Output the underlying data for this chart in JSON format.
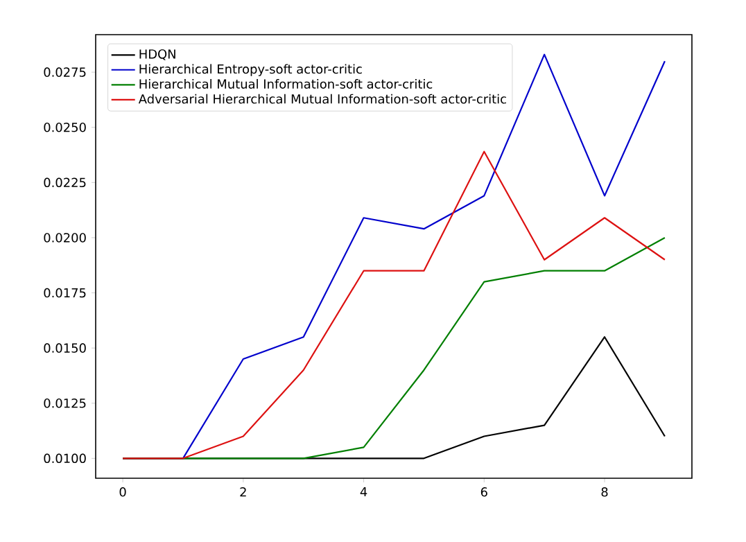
{
  "chart_data": {
    "type": "line",
    "x": [
      0,
      1,
      2,
      3,
      4,
      5,
      6,
      7,
      8,
      9
    ],
    "series": [
      {
        "name": "HDQN",
        "color": "#000000",
        "values": [
          0.01,
          0.01,
          0.01,
          0.01,
          0.01,
          0.01,
          0.011,
          0.0115,
          0.0155,
          0.011
        ]
      },
      {
        "name": "Hierarchical Entropy-soft actor-critic",
        "color": "#0000cc",
        "values": [
          0.01,
          0.01,
          0.0145,
          0.0155,
          0.0209,
          0.0204,
          0.0219,
          0.0283,
          0.0219,
          0.028
        ]
      },
      {
        "name": "Hierarchical Mutual Information-soft actor-critic",
        "color": "#007f00",
        "values": [
          0.01,
          0.01,
          0.01,
          0.01,
          0.0105,
          0.014,
          0.018,
          0.0185,
          0.0185,
          0.02
        ]
      },
      {
        "name": "Adversarial Hierarchical Mutual Information-soft actor-critic",
        "color": "#dd1111",
        "values": [
          0.01,
          0.01,
          0.011,
          0.014,
          0.0185,
          0.0185,
          0.0239,
          0.019,
          0.0209,
          0.019
        ]
      }
    ],
    "xlim": [
      -0.45,
      9.45
    ],
    "ylim": [
      0.0091,
      0.0292
    ],
    "xticks": [
      0,
      2,
      4,
      6,
      8
    ],
    "yticks": [
      {
        "value": 0.01,
        "label": "0.0100"
      },
      {
        "value": 0.0125,
        "label": "0.0125"
      },
      {
        "value": 0.015,
        "label": "0.0150"
      },
      {
        "value": 0.0175,
        "label": "0.0175"
      },
      {
        "value": 0.02,
        "label": "0.0200"
      },
      {
        "value": 0.0225,
        "label": "0.0225"
      },
      {
        "value": 0.025,
        "label": "0.0250"
      },
      {
        "value": 0.0275,
        "label": "0.0275"
      }
    ],
    "legend": "top left",
    "grid": false,
    "marker": "none",
    "line_style": "solid"
  }
}
